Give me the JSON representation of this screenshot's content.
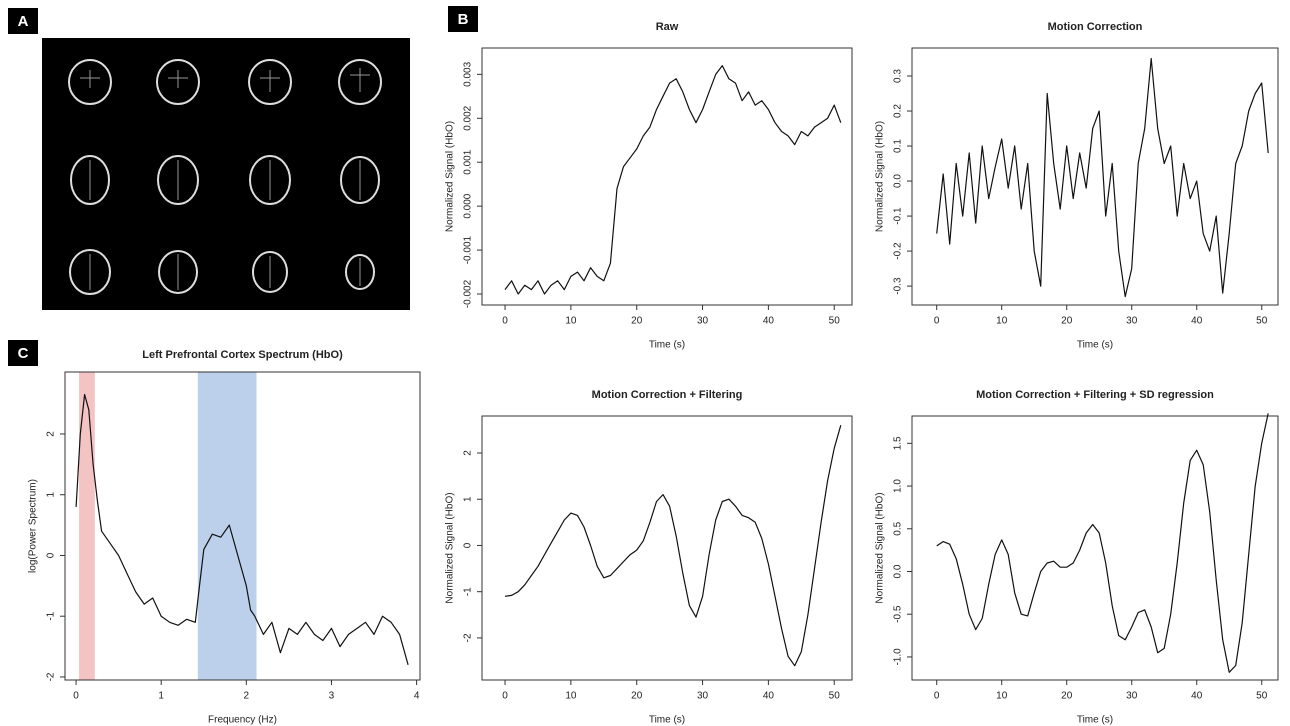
{
  "panel_labels": [
    "A",
    "B",
    "C"
  ],
  "chart_data": [
    {
      "type": "line",
      "title": "Raw",
      "x_label": "Time (s)",
      "y_label": "Normalized Signal (HbO)",
      "xlim": [
        -3.5,
        52.7
      ],
      "xticks": [
        0,
        10,
        20,
        30,
        40,
        50
      ],
      "ylim": [
        -0.00225,
        0.0036
      ],
      "yticks": [
        -0.002,
        -0.001,
        {
          "value": 0,
          "label": "0.000"
        },
        0.001,
        0.002,
        0.003
      ],
      "color": "#111111",
      "x": [
        0,
        1,
        2,
        3,
        4,
        5,
        6,
        7,
        8,
        9,
        10,
        11,
        12,
        13,
        14,
        15,
        16,
        17,
        18,
        19,
        20,
        21,
        22,
        23,
        24,
        25,
        26,
        27,
        28,
        29,
        30,
        31,
        32,
        33,
        34,
        35,
        36,
        37,
        38,
        39,
        40,
        41,
        42,
        43,
        44,
        45,
        46,
        47,
        48,
        49,
        50,
        51
      ],
      "values": [
        -0.0019,
        -0.0017,
        -0.002,
        -0.0018,
        -0.0019,
        -0.0017,
        -0.002,
        -0.0018,
        -0.0017,
        -0.0019,
        -0.0016,
        -0.0015,
        -0.0017,
        -0.0014,
        -0.0016,
        -0.0017,
        -0.0013,
        0.0004,
        0.0009,
        0.0011,
        0.0013,
        0.0016,
        0.0018,
        0.0022,
        0.0025,
        0.0028,
        0.0029,
        0.0026,
        0.0022,
        0.0019,
        0.0022,
        0.0026,
        0.003,
        0.0032,
        0.0029,
        0.0028,
        0.0024,
        0.0026,
        0.0023,
        0.0024,
        0.0022,
        0.0019,
        0.0017,
        0.0016,
        0.0014,
        0.0017,
        0.0016,
        0.0018,
        0.0019,
        0.002,
        0.0023,
        0.0019
      ]
    },
    {
      "type": "line",
      "title": "Motion Correction",
      "x_label": "Time (s)",
      "y_label": "Normalized Signal (HbO)",
      "xlim": [
        -3.8,
        52.5
      ],
      "xticks": [
        0,
        10,
        20,
        30,
        40,
        50
      ],
      "ylim": [
        -0.354,
        0.38
      ],
      "yticks": [
        -0.3,
        -0.2,
        -0.1,
        {
          "value": 0,
          "label": "0.0"
        },
        0.1,
        0.2,
        0.3
      ],
      "color": "#111111",
      "x": [
        0,
        1,
        2,
        3,
        4,
        5,
        6,
        7,
        8,
        9,
        10,
        11,
        12,
        13,
        14,
        15,
        16,
        17,
        18,
        19,
        20,
        21,
        22,
        23,
        24,
        25,
        26,
        27,
        28,
        29,
        30,
        31,
        32,
        33,
        34,
        35,
        36,
        37,
        38,
        39,
        40,
        41,
        42,
        43,
        44,
        45,
        46,
        47,
        48,
        49,
        50,
        51
      ],
      "values": [
        -0.15,
        0.02,
        -0.18,
        0.05,
        -0.1,
        0.08,
        -0.12,
        0.1,
        -0.05,
        0.04,
        0.12,
        -0.02,
        0.1,
        -0.08,
        0.05,
        -0.2,
        -0.3,
        0.25,
        0.05,
        -0.08,
        0.1,
        -0.05,
        0.08,
        -0.02,
        0.15,
        0.2,
        -0.1,
        0.05,
        -0.2,
        -0.33,
        -0.25,
        0.05,
        0.15,
        0.35,
        0.15,
        0.05,
        0.1,
        -0.1,
        0.05,
        -0.05,
        0.0,
        -0.15,
        -0.2,
        -0.1,
        -0.32,
        -0.15,
        0.05,
        0.1,
        0.2,
        0.25,
        0.28,
        0.08
      ]
    },
    {
      "type": "line",
      "title": "Motion Correction + Filtering",
      "x_label": "Time (s)",
      "y_label": "Normalized Signal (HbO)",
      "xlim": [
        -3.5,
        52.7
      ],
      "xticks": [
        0,
        10,
        20,
        30,
        40,
        50
      ],
      "ylim": [
        -2.91,
        2.8
      ],
      "yticks": [
        -2,
        -1,
        0,
        1,
        2
      ],
      "color": "#111111",
      "x": [
        0,
        1,
        2,
        3,
        4,
        5,
        6,
        7,
        8,
        9,
        10,
        11,
        12,
        13,
        14,
        15,
        16,
        17,
        18,
        19,
        20,
        21,
        22,
        23,
        24,
        25,
        26,
        27,
        28,
        29,
        30,
        31,
        32,
        33,
        34,
        35,
        36,
        37,
        38,
        39,
        40,
        41,
        42,
        43,
        44,
        45,
        46,
        47,
        48,
        49,
        50,
        51
      ],
      "values": [
        -1.1,
        -1.08,
        -1.0,
        -0.85,
        -0.65,
        -0.45,
        -0.2,
        0.05,
        0.3,
        0.55,
        0.7,
        0.65,
        0.4,
        0.0,
        -0.45,
        -0.7,
        -0.65,
        -0.5,
        -0.35,
        -0.2,
        -0.1,
        0.1,
        0.5,
        0.95,
        1.1,
        0.85,
        0.2,
        -0.6,
        -1.3,
        -1.55,
        -1.1,
        -0.2,
        0.55,
        0.95,
        1.0,
        0.85,
        0.65,
        0.6,
        0.5,
        0.15,
        -0.4,
        -1.1,
        -1.8,
        -2.4,
        -2.6,
        -2.3,
        -1.5,
        -0.5,
        0.5,
        1.4,
        2.1,
        2.6
      ]
    },
    {
      "type": "line",
      "title": "Motion Correction + Filtering + SD regression",
      "x_label": "Time (s)",
      "y_label": "Normalized Signal (HbO)",
      "xlim": [
        -3.8,
        52.5
      ],
      "xticks": [
        0,
        10,
        20,
        30,
        40,
        50
      ],
      "ylim": [
        -1.27,
        1.82
      ],
      "yticks": [
        {
          "value": -1,
          "label": "-1.0"
        },
        -0.5,
        {
          "value": 0,
          "label": "0.0"
        },
        0.5,
        {
          "value": 1,
          "label": "1.0"
        },
        1.5
      ],
      "color": "#111111",
      "x": [
        0,
        1,
        2,
        3,
        4,
        5,
        6,
        7,
        8,
        9,
        10,
        11,
        12,
        13,
        14,
        15,
        16,
        17,
        18,
        19,
        20,
        21,
        22,
        23,
        24,
        25,
        26,
        27,
        28,
        29,
        30,
        31,
        32,
        33,
        34,
        35,
        36,
        37,
        38,
        39,
        40,
        41,
        42,
        43,
        44,
        45,
        46,
        47,
        48,
        49,
        50,
        51
      ],
      "values": [
        0.3,
        0.35,
        0.32,
        0.15,
        -0.15,
        -0.5,
        -0.68,
        -0.55,
        -0.15,
        0.2,
        0.37,
        0.2,
        -0.25,
        -0.5,
        -0.52,
        -0.25,
        0.0,
        0.1,
        0.12,
        0.05,
        0.05,
        0.1,
        0.25,
        0.45,
        0.55,
        0.45,
        0.1,
        -0.4,
        -0.75,
        -0.8,
        -0.65,
        -0.48,
        -0.45,
        -0.65,
        -0.95,
        -0.9,
        -0.5,
        0.1,
        0.8,
        1.3,
        1.42,
        1.25,
        0.7,
        -0.1,
        -0.8,
        -1.18,
        -1.1,
        -0.6,
        0.2,
        1.0,
        1.5,
        1.85
      ]
    },
    {
      "type": "line",
      "title": "Left Prefrontal Cortex Spectrum (HbO)",
      "x_label": "Frequency (Hz)",
      "y_label": "log(Power Spectrum)",
      "xlim": [
        -0.13,
        4.04
      ],
      "xticks": [
        0,
        1,
        2,
        3,
        4
      ],
      "ylim": [
        -2.05,
        3.02
      ],
      "yticks": [
        -2,
        -1,
        0,
        1,
        2
      ],
      "color": "#111111",
      "bands": [
        {
          "xlim": [
            0.035,
            0.22
          ],
          "color": "#f4c4c4"
        },
        {
          "xlim": [
            1.43,
            2.12
          ],
          "color": "#bcd0eb"
        }
      ],
      "x": [
        0.0,
        0.05,
        0.1,
        0.15,
        0.2,
        0.25,
        0.3,
        0.4,
        0.5,
        0.6,
        0.7,
        0.8,
        0.9,
        1.0,
        1.1,
        1.2,
        1.3,
        1.4,
        1.45,
        1.5,
        1.6,
        1.7,
        1.8,
        1.9,
        2.0,
        2.05,
        2.1,
        2.2,
        2.3,
        2.4,
        2.5,
        2.6,
        2.7,
        2.8,
        2.9,
        3.0,
        3.1,
        3.2,
        3.3,
        3.4,
        3.5,
        3.6,
        3.7,
        3.8,
        3.9
      ],
      "values": [
        0.8,
        2.0,
        2.65,
        2.4,
        1.5,
        0.9,
        0.4,
        0.2,
        0.0,
        -0.3,
        -0.6,
        -0.8,
        -0.7,
        -1.0,
        -1.1,
        -1.15,
        -1.05,
        -1.1,
        -0.5,
        0.1,
        0.35,
        0.3,
        0.5,
        0.0,
        -0.5,
        -0.9,
        -1.0,
        -1.3,
        -1.1,
        -1.6,
        -1.2,
        -1.3,
        -1.1,
        -1.3,
        -1.4,
        -1.2,
        -1.5,
        -1.3,
        -1.2,
        -1.1,
        -1.3,
        -1.0,
        -1.1,
        -1.3,
        -1.8
      ]
    }
  ]
}
